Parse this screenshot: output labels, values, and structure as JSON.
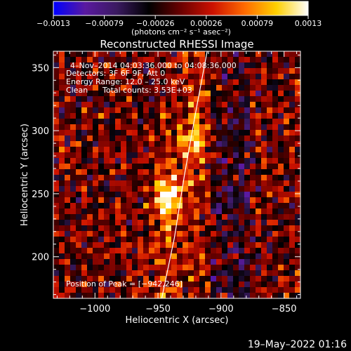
{
  "chart_data": {
    "type": "heatmap",
    "title": "Reconstructed RHESSI Image",
    "xlabel": "Heliocentric X (arcsec)",
    "ylabel": "Heliocentric Y (arcsec)",
    "xlim": [
      -1033,
      -837
    ],
    "ylim": [
      167,
      363
    ],
    "x_ticks": [
      -1000,
      -950,
      -900,
      -850
    ],
    "x_tick_labels": [
      "−1000",
      "−950",
      "−900",
      "−850"
    ],
    "y_ticks": [
      200,
      250,
      300,
      350
    ],
    "y_tick_labels": [
      "200",
      "250",
      "300",
      "350"
    ],
    "colorbar": {
      "range": [
        -0.0013,
        0.0013
      ],
      "tick_labels": [
        "−0.0013",
        "−0.00079",
        "−0.00026",
        "0.00026",
        "0.00079",
        "0.0013"
      ],
      "unit_label": "(photons cm⁻² s⁻¹ asec⁻²)",
      "colors": [
        "#0000ff",
        "#5a1aa0",
        "#3a1a60",
        "#000000",
        "#6a0000",
        "#cc1100",
        "#ff6a00",
        "#ffd000",
        "#ffffff"
      ]
    },
    "annotations": {
      "time": "4–Nov–2014 04:03:36.000 to 04:08:36.000",
      "detectors": "Detectors: 3F 6F 9F, Att 0",
      "energy": "Energy Range: 12.0 – 25.0 keV",
      "clean_prefix": "Clean",
      "counts": "Total counts: 3.53E+03",
      "peak": "Position of Peak = [−942,246]"
    },
    "peak": [
      -942,
      246
    ],
    "secondary_source": [
      -922,
      292
    ],
    "limb_curve": [
      [
        -947,
        167
      ],
      [
        -937,
        215
      ],
      [
        -929,
        265
      ],
      [
        -920,
        315
      ],
      [
        -911,
        363
      ]
    ],
    "footer_date": "19–May–2022 01:16"
  }
}
